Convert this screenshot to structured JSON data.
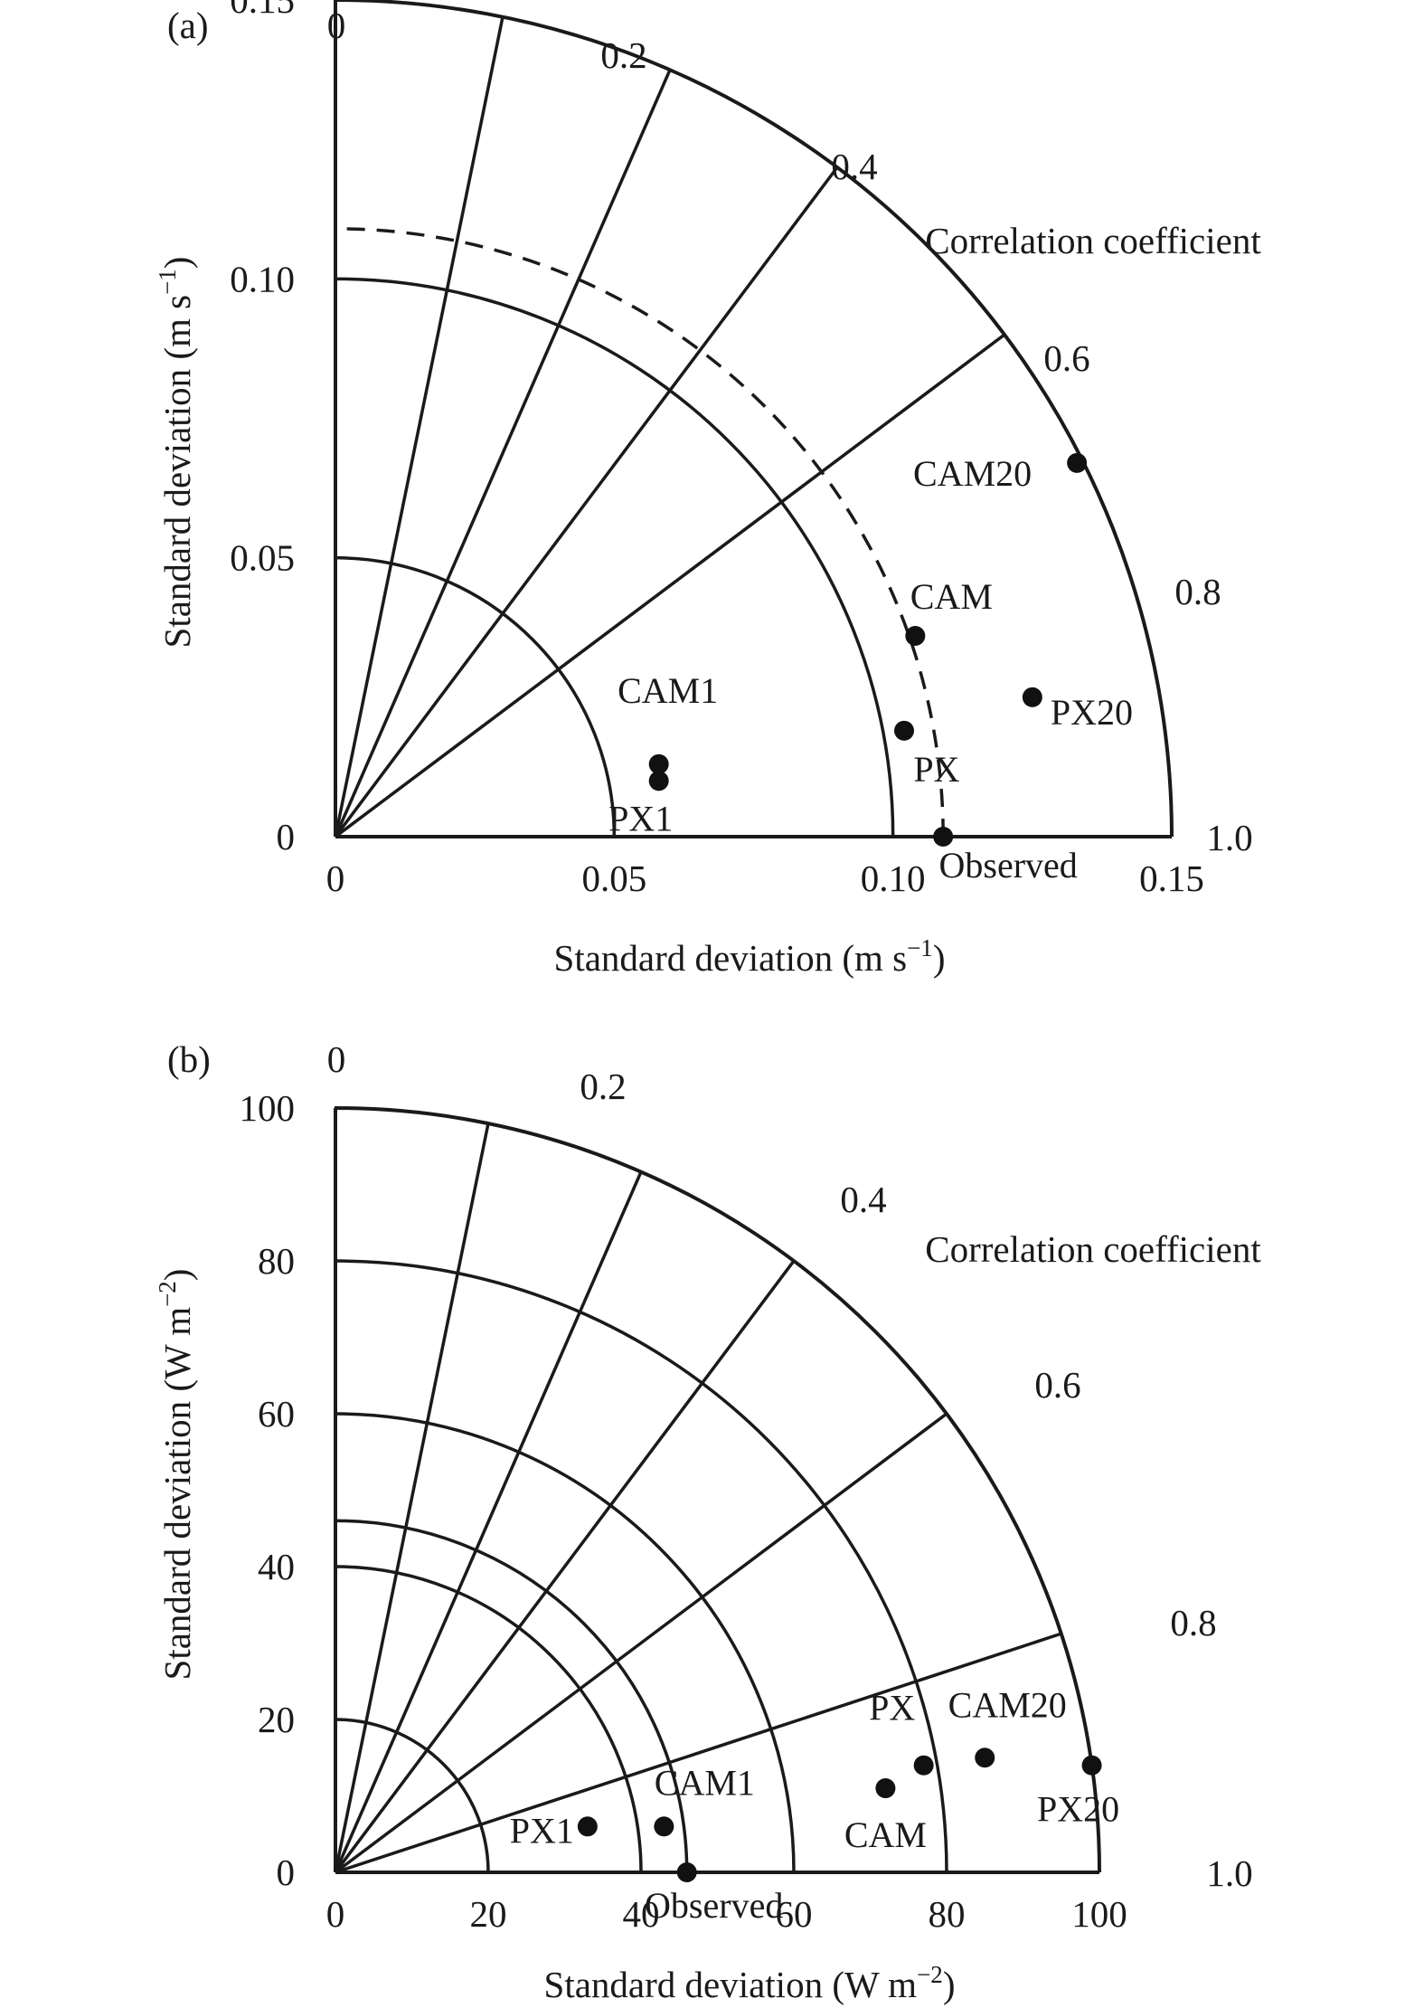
{
  "chart_data": [
    {
      "type": "scatter",
      "subtype": "taylor-diagram",
      "panel_label": "(a)",
      "xlabel": "Standard deviation (m s",
      "xlabel_sup": "−1",
      "xlabel_end": ")",
      "ylabel": "Standard deviation (m s",
      "ylabel_sup": "−1",
      "ylabel_end": ")",
      "arc_label": "Correlation coefficient",
      "std_max": 0.15,
      "std_ticks": [
        0,
        0.05,
        0.1,
        0.15
      ],
      "std_tick_labels": [
        "0",
        "0.05",
        "0.10",
        "0.15"
      ],
      "std_arcs": [
        0.05,
        0.1,
        0.15
      ],
      "observed_std": 0.109,
      "corr_lines": [
        0.2,
        0.4,
        0.6,
        0.8
      ],
      "corr_labels": [
        "0",
        "0.2",
        "0.4",
        "0.6",
        "0.8",
        "1.0"
      ],
      "points": [
        {
          "label": "CAM20",
          "x": 0.133,
          "y": 0.067
        },
        {
          "label": "CAM",
          "x": 0.104,
          "y": 0.036
        },
        {
          "label": "PX20",
          "x": 0.125,
          "y": 0.025
        },
        {
          "label": "PX",
          "x": 0.102,
          "y": 0.019
        },
        {
          "label": "CAM1",
          "x": 0.058,
          "y": 0.013
        },
        {
          "label": "PX1",
          "x": 0.058,
          "y": 0.01
        },
        {
          "label": "Observed",
          "x": 0.109,
          "y": 0
        }
      ]
    },
    {
      "type": "scatter",
      "subtype": "taylor-diagram",
      "panel_label": "(b)",
      "xlabel": "Standard deviation (W m",
      "xlabel_sup": "−2",
      "xlabel_end": ")",
      "ylabel": "Standard deviation (W m",
      "ylabel_sup": "−2",
      "ylabel_end": ")",
      "arc_label": "Correlation coefficient",
      "std_max": 100,
      "std_ticks": [
        0,
        20,
        40,
        60,
        80,
        100
      ],
      "std_tick_labels": [
        "0",
        "20",
        "40",
        "60",
        "80",
        "100"
      ],
      "std_arcs": [
        20,
        40,
        60,
        80,
        100
      ],
      "observed_std": 46,
      "corr_lines": [
        0.2,
        0.4,
        0.6,
        0.8,
        0.95
      ],
      "corr_labels": [
        "0",
        "0.2",
        "0.4",
        "0.6",
        "0.8",
        "1.0"
      ],
      "points": [
        {
          "label": "PX1",
          "x": 33,
          "y": 6
        },
        {
          "label": "CAM1",
          "x": 43,
          "y": 6
        },
        {
          "label": "Observed",
          "x": 46,
          "y": 0
        },
        {
          "label": "CAM",
          "x": 72,
          "y": 11
        },
        {
          "label": "PX",
          "x": 77,
          "y": 14
        },
        {
          "label": "CAM20",
          "x": 85,
          "y": 15
        },
        {
          "label": "PX20",
          "x": 99,
          "y": 14
        }
      ]
    }
  ]
}
